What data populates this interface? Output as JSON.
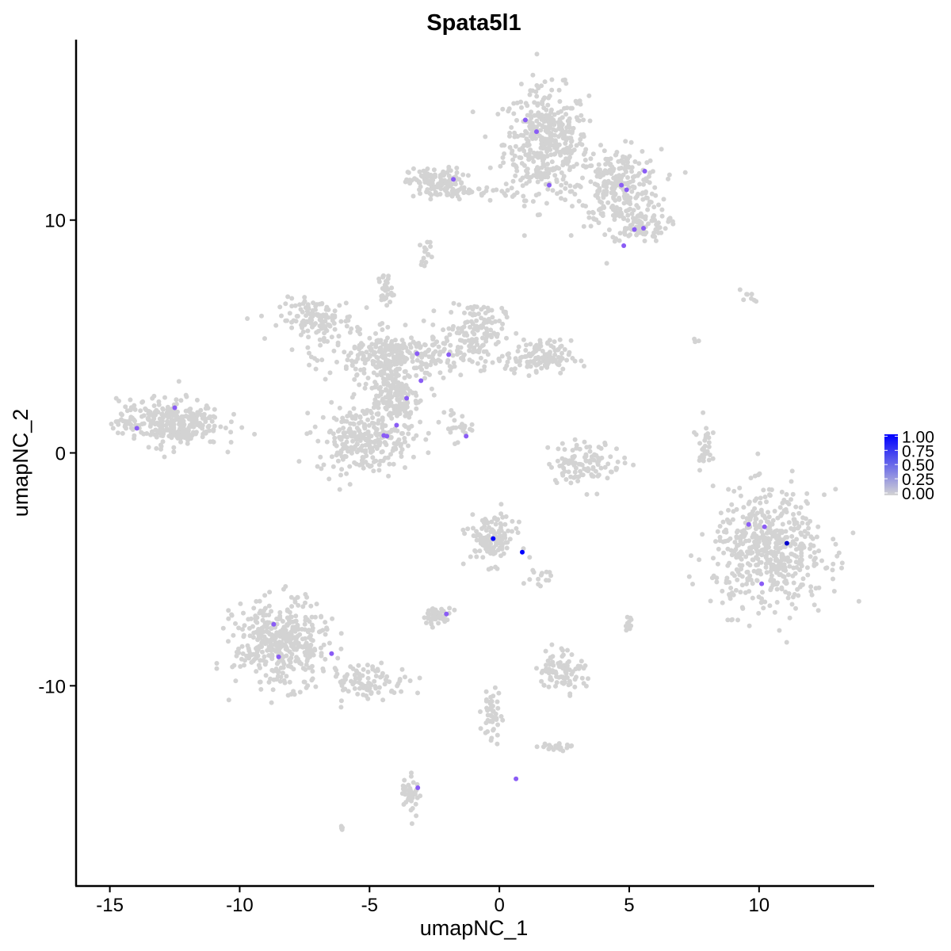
{
  "chart_data": {
    "type": "scatter",
    "title": "Spata5l1",
    "xlabel": "umapNC_1",
    "ylabel": "umapNC_2",
    "xlim": [
      -16.3,
      14.4
    ],
    "ylim": [
      -18.6,
      17.75
    ],
    "xticks": [
      "-15",
      "-10",
      "-5",
      "0",
      "5",
      "10"
    ],
    "xtick_values": [
      -15,
      -10,
      -5,
      0,
      5,
      10
    ],
    "yticks": [
      "-10",
      "0",
      "10"
    ],
    "ytick_values": [
      -10,
      0,
      10
    ],
    "grid": false,
    "legend": {
      "placement": "right",
      "type": "colorbar",
      "low_color": "#d3d3d3",
      "high_color": "#0000ff",
      "range": [
        0,
        1
      ],
      "labels": [
        "1.00",
        "0.75",
        "0.50",
        "0.25",
        "0.00"
      ],
      "label_values": [
        1,
        0.75,
        0.5,
        0.25,
        0
      ]
    },
    "background_color": "#d3d3d3",
    "background_clusters": [
      {
        "x": 1.8,
        "y": 13.3,
        "sx": 0.9,
        "sy": 1.3,
        "n": 420
      },
      {
        "x": 4.6,
        "y": 11.4,
        "sx": 0.9,
        "sy": 0.9,
        "n": 260
      },
      {
        "x": 5.4,
        "y": 9.8,
        "sx": 0.6,
        "sy": 0.4,
        "n": 90
      },
      {
        "x": -2.4,
        "y": 11.6,
        "sx": 0.6,
        "sy": 0.35,
        "n": 130
      },
      {
        "x": -0.9,
        "y": 11.2,
        "sx": 1.2,
        "sy": 0.15,
        "n": 40
      },
      {
        "x": -2.8,
        "y": 8.6,
        "sx": 0.15,
        "sy": 0.3,
        "n": 15
      },
      {
        "x": -7.0,
        "y": 5.7,
        "sx": 0.8,
        "sy": 0.5,
        "n": 130
      },
      {
        "x": -4.0,
        "y": 4.1,
        "sx": 1.4,
        "sy": 0.6,
        "n": 300
      },
      {
        "x": -0.9,
        "y": 5.3,
        "sx": 0.6,
        "sy": 0.7,
        "n": 130
      },
      {
        "x": 1.5,
        "y": 4.1,
        "sx": 0.7,
        "sy": 0.4,
        "n": 130
      },
      {
        "x": -4.0,
        "y": 2.4,
        "sx": 0.5,
        "sy": 0.8,
        "n": 160
      },
      {
        "x": -5.2,
        "y": 0.6,
        "sx": 1.0,
        "sy": 0.8,
        "n": 260
      },
      {
        "x": -4.4,
        "y": 7.0,
        "sx": 0.15,
        "sy": 0.4,
        "n": 30
      },
      {
        "x": -1.8,
        "y": 1.2,
        "sx": 0.4,
        "sy": 0.4,
        "n": 25
      },
      {
        "x": -12.7,
        "y": 1.3,
        "sx": 1.1,
        "sy": 0.55,
        "n": 320
      },
      {
        "x": 3.3,
        "y": -0.4,
        "sx": 0.8,
        "sy": 0.5,
        "n": 110
      },
      {
        "x": 7.9,
        "y": 0.4,
        "sx": 0.15,
        "sy": 0.6,
        "n": 30
      },
      {
        "x": 10.4,
        "y": -4.2,
        "sx": 1.2,
        "sy": 1.4,
        "n": 520
      },
      {
        "x": -0.3,
        "y": -3.7,
        "sx": 0.5,
        "sy": 0.6,
        "n": 130
      },
      {
        "x": -8.4,
        "y": -8.2,
        "sx": 1.0,
        "sy": 1.0,
        "n": 420
      },
      {
        "x": -5.0,
        "y": -9.8,
        "sx": 0.9,
        "sy": 0.4,
        "n": 90
      },
      {
        "x": -2.4,
        "y": -7.0,
        "sx": 0.3,
        "sy": 0.2,
        "n": 40
      },
      {
        "x": 2.4,
        "y": -9.3,
        "sx": 0.5,
        "sy": 0.5,
        "n": 90
      },
      {
        "x": -3.4,
        "y": -14.6,
        "sx": 0.2,
        "sy": 0.5,
        "n": 40
      },
      {
        "x": -0.3,
        "y": -11.3,
        "sx": 0.2,
        "sy": 0.7,
        "n": 45
      },
      {
        "x": 5.0,
        "y": -7.3,
        "sx": 0.1,
        "sy": 0.2,
        "n": 10
      },
      {
        "x": 7.6,
        "y": 4.8,
        "sx": 0.1,
        "sy": 0.1,
        "n": 3
      },
      {
        "x": 9.6,
        "y": 6.8,
        "sx": 0.2,
        "sy": 0.15,
        "n": 8
      },
      {
        "x": -6.1,
        "y": -16.1,
        "sx": 0.05,
        "sy": 0.05,
        "n": 5
      },
      {
        "x": 2.1,
        "y": -12.6,
        "sx": 0.4,
        "sy": 0.1,
        "n": 20
      },
      {
        "x": 1.5,
        "y": -5.3,
        "sx": 0.3,
        "sy": 0.3,
        "n": 15
      }
    ],
    "expressing_cells": [
      {
        "x": 1.0,
        "y": 14.3,
        "v": 0.55
      },
      {
        "x": 1.43,
        "y": 13.8,
        "v": 0.55
      },
      {
        "x": -1.77,
        "y": 11.75,
        "v": 0.55
      },
      {
        "x": 1.92,
        "y": 11.5,
        "v": 0.55
      },
      {
        "x": 4.7,
        "y": 11.5,
        "v": 0.55
      },
      {
        "x": 4.9,
        "y": 11.3,
        "v": 0.55
      },
      {
        "x": 5.6,
        "y": 12.1,
        "v": 0.55
      },
      {
        "x": 5.2,
        "y": 9.6,
        "v": 0.55
      },
      {
        "x": 5.55,
        "y": 9.65,
        "v": 0.55
      },
      {
        "x": 4.79,
        "y": 8.9,
        "v": 0.55
      },
      {
        "x": -3.17,
        "y": 4.26,
        "v": 0.55
      },
      {
        "x": -1.95,
        "y": 4.22,
        "v": 0.55
      },
      {
        "x": -3.02,
        "y": 3.1,
        "v": 0.55
      },
      {
        "x": -3.57,
        "y": 2.35,
        "v": 0.55
      },
      {
        "x": -3.96,
        "y": 1.19,
        "v": 0.55
      },
      {
        "x": -4.45,
        "y": 0.75,
        "v": 0.55
      },
      {
        "x": -4.33,
        "y": 0.72,
        "v": 0.55
      },
      {
        "x": -1.28,
        "y": 0.72,
        "v": 0.55
      },
      {
        "x": -12.5,
        "y": 1.94,
        "v": 0.55
      },
      {
        "x": -13.96,
        "y": 1.06,
        "v": 0.55
      },
      {
        "x": -0.24,
        "y": -3.68,
        "v": 1.0
      },
      {
        "x": 0.88,
        "y": -4.26,
        "v": 1.0
      },
      {
        "x": 9.6,
        "y": -3.07,
        "v": 0.55
      },
      {
        "x": 10.21,
        "y": -3.17,
        "v": 0.55
      },
      {
        "x": 11.07,
        "y": -3.88,
        "v": 1.0
      },
      {
        "x": 10.1,
        "y": -5.62,
        "v": 0.55
      },
      {
        "x": -8.69,
        "y": -7.36,
        "v": 0.55
      },
      {
        "x": -8.5,
        "y": -8.76,
        "v": 0.55
      },
      {
        "x": -6.46,
        "y": -8.62,
        "v": 0.55
      },
      {
        "x": -2.04,
        "y": -6.92,
        "v": 0.55
      },
      {
        "x": -3.14,
        "y": -14.38,
        "v": 0.55
      },
      {
        "x": 0.64,
        "y": -14.0,
        "v": 0.55
      }
    ]
  }
}
